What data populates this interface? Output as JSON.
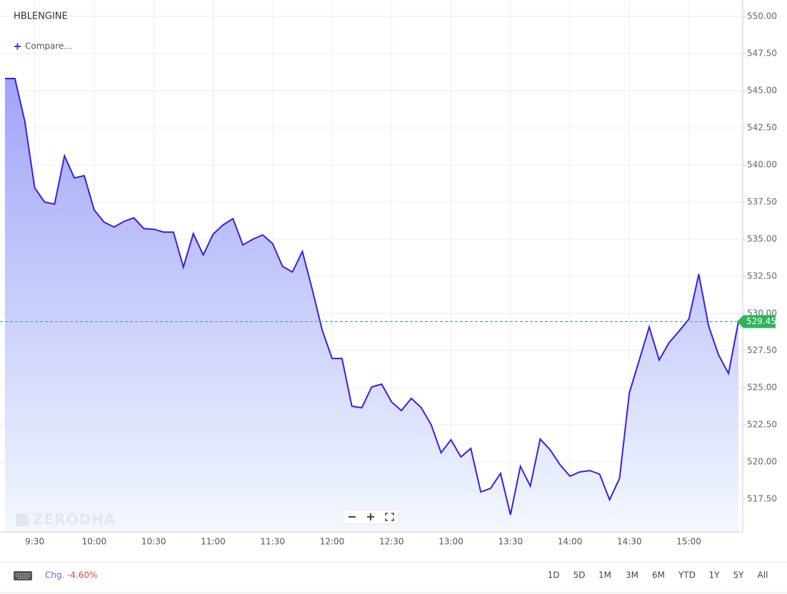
{
  "symbol": "HBLENGINE",
  "compare": "Compare...",
  "watermark": "ZERODHA",
  "chart_data": {
    "type": "area",
    "x": [
      "9:15",
      "9:20",
      "9:25",
      "9:30",
      "9:35",
      "9:40",
      "9:45",
      "9:50",
      "9:55",
      "10:00",
      "10:05",
      "10:10",
      "10:15",
      "10:20",
      "10:25",
      "10:30",
      "10:35",
      "10:40",
      "10:45",
      "10:50",
      "10:55",
      "11:00",
      "11:05",
      "11:10",
      "11:15",
      "11:20",
      "11:25",
      "11:30",
      "11:35",
      "11:40",
      "11:45",
      "11:50",
      "11:55",
      "12:00",
      "12:05",
      "12:10",
      "12:15",
      "12:20",
      "12:25",
      "12:30",
      "12:35",
      "12:40",
      "12:45",
      "12:50",
      "12:55",
      "13:00",
      "13:05",
      "13:10",
      "13:15",
      "13:20",
      "13:25",
      "13:30",
      "13:35",
      "13:40",
      "13:45",
      "13:50",
      "13:55",
      "14:00",
      "14:05",
      "14:10",
      "14:15",
      "14:20",
      "14:25",
      "14:30",
      "14:35",
      "14:40",
      "14:45",
      "14:50",
      "14:55",
      "15:00",
      "15:05",
      "15:10",
      "15:15",
      "15:20",
      "15:25"
    ],
    "series": [
      {
        "color": "#3b1ee0",
        "values": [
          545.82,
          545.82,
          542.93,
          538.46,
          537.5,
          537.36,
          540.62,
          539.13,
          539.28,
          536.97,
          536.15,
          535.82,
          536.2,
          536.44,
          535.72,
          535.67,
          535.48,
          535.48,
          533.12,
          535.38,
          533.94,
          535.34,
          535.96,
          536.39,
          534.62,
          535.0,
          535.29,
          534.71,
          533.17,
          532.79,
          534.18,
          531.63,
          528.89,
          526.97,
          526.97,
          523.75,
          523.65,
          525.05,
          525.24,
          524.04,
          523.46,
          524.28,
          523.65,
          522.5,
          520.62,
          521.49,
          520.34,
          520.91,
          517.98,
          518.22,
          519.23,
          516.44,
          519.71,
          518.37,
          521.54,
          520.82,
          519.81,
          519.04,
          519.33,
          519.42,
          519.18,
          517.45,
          518.89,
          524.66,
          526.87,
          529.09,
          526.87,
          528.03,
          528.8,
          529.62,
          532.64,
          529.13,
          527.21,
          525.96,
          529.45
        ]
      }
    ],
    "ylim": [
      515.29,
      551.11
    ],
    "yticks": [
      {
        "value": 517.5,
        "label": "517.50"
      },
      {
        "value": 520,
        "label": "520.00"
      },
      {
        "value": 522.5,
        "label": "522.50"
      },
      {
        "value": 525,
        "label": "525.00"
      },
      {
        "value": 527.5,
        "label": "527.50"
      },
      {
        "value": 530,
        "label": "530.00"
      },
      {
        "value": 532.5,
        "label": "532.50"
      },
      {
        "value": 535,
        "label": "535.00"
      },
      {
        "value": 537.5,
        "label": "537.50"
      },
      {
        "value": 540,
        "label": "540.00"
      },
      {
        "value": 542.5,
        "label": "542.50"
      },
      {
        "value": 545,
        "label": "545.00"
      },
      {
        "value": 547.5,
        "label": "547.50"
      },
      {
        "value": 550,
        "label": "550.00"
      }
    ],
    "xticks": [
      "9:30",
      "10:00",
      "10:30",
      "11:00",
      "11:30",
      "12:00",
      "12:30",
      "13:00",
      "13:30",
      "14:00",
      "14:30",
      "15:00"
    ],
    "grid": true,
    "fill_top": "#a0a4f8",
    "fill_bottom": "#f3f8fe",
    "last_line_color": "#26a69a",
    "last_tag_color": "#2db35d"
  },
  "footer": {
    "change_label": "Chg.",
    "change_value": "-4.60%",
    "ranges": [
      "1D",
      "5D",
      "1M",
      "3M",
      "6M",
      "YTD",
      "1Y",
      "5Y",
      "All"
    ]
  }
}
